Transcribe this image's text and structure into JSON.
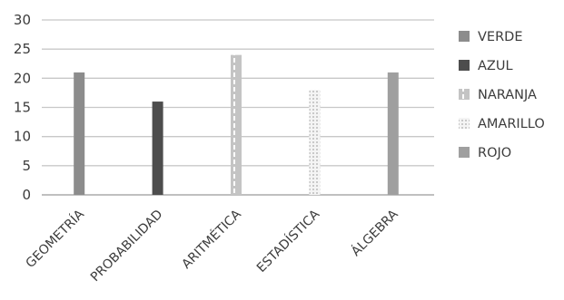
{
  "chart_data": {
    "type": "bar",
    "categories": [
      "GEOMETRÍA",
      "PROBABILIDAD",
      "ARITMÉTICA",
      "ESTADÍSTICA",
      "ÁLGEBRA"
    ],
    "values": [
      21,
      16,
      24,
      18,
      21
    ],
    "series": [
      {
        "name": "VERDE",
        "color": "#8c8c8c",
        "pattern": "solid"
      },
      {
        "name": "AZUL",
        "color": "#4d4d4d",
        "pattern": "solid"
      },
      {
        "name": "NARANJA",
        "color": "#bdbdbd",
        "pattern": "dashed-stripe"
      },
      {
        "name": "AMARILLO",
        "color": "#e2e2e2",
        "pattern": "dotted"
      },
      {
        "name": "ROJO",
        "color": "#9f9f9f",
        "pattern": "solid"
      }
    ],
    "ylim": [
      0,
      30
    ],
    "yticks": [
      0,
      5,
      10,
      15,
      20,
      25,
      30
    ],
    "grid": true,
    "legend_position": "right",
    "title": "",
    "xlabel": "",
    "ylabel": ""
  }
}
